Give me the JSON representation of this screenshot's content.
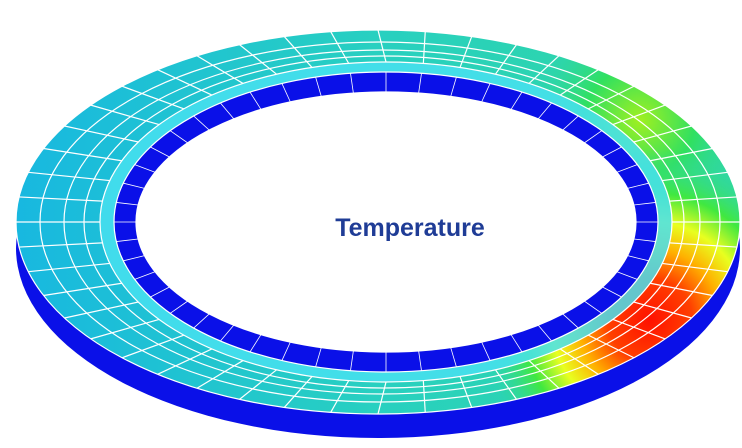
{
  "figure": {
    "label": "Temperature"
  }
}
